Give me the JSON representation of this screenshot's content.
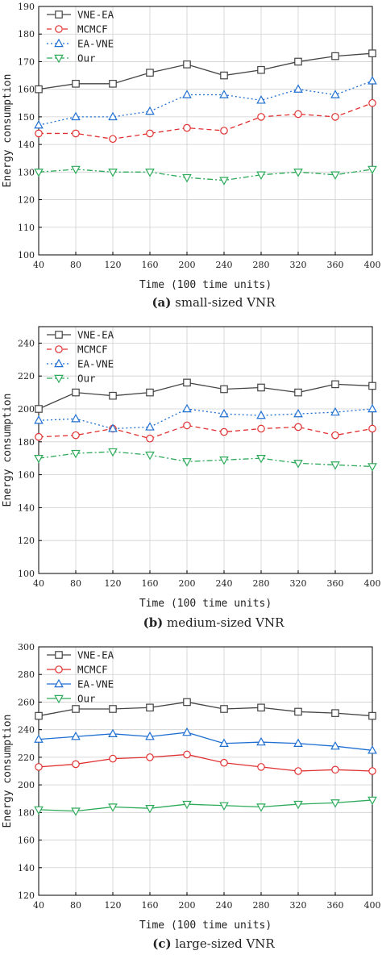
{
  "colors": {
    "VNE-EA": "#444444",
    "MCMCF": "#e03030",
    "EA-VNE": "#1f6fd1",
    "Our": "#2daa5a",
    "grid": "#cfcfcf",
    "axis": "#000000"
  },
  "chart_data": [
    {
      "type": "line",
      "caption_letter": "(a)",
      "caption_text": " small-sized VNR",
      "xlabel": "Time (100 time units)",
      "ylabel": "Energy consumption",
      "x": [
        40,
        80,
        120,
        160,
        200,
        240,
        280,
        320,
        360,
        400
      ],
      "xlim": [
        40,
        400
      ],
      "ylim": [
        100,
        190
      ],
      "yticks": [
        100,
        110,
        120,
        130,
        140,
        150,
        160,
        170,
        180,
        190
      ],
      "grid": true,
      "legend": "top-left",
      "series": [
        {
          "name": "VNE-EA",
          "marker": "square",
          "dash": "solid",
          "values": [
            160,
            162,
            162,
            166,
            169,
            165,
            167,
            170,
            172,
            173
          ]
        },
        {
          "name": "MCMCF",
          "marker": "circle",
          "dash": "dashed",
          "values": [
            144,
            144,
            142,
            144,
            146,
            145,
            150,
            151,
            150,
            155
          ]
        },
        {
          "name": "EA-VNE",
          "marker": "triangle-up",
          "dash": "dotted",
          "values": [
            147,
            150,
            150,
            152,
            158,
            158,
            156,
            160,
            158,
            163
          ]
        },
        {
          "name": "Our",
          "marker": "triangle-down",
          "dash": "dashdot",
          "values": [
            130,
            131,
            130,
            130,
            128,
            127,
            129,
            130,
            129,
            131
          ]
        }
      ]
    },
    {
      "type": "line",
      "caption_letter": "(b)",
      "caption_text": " medium-sized VNR",
      "xlabel": "Time (100 time units)",
      "ylabel": "Energy consumption",
      "x": [
        40,
        80,
        120,
        160,
        200,
        240,
        280,
        320,
        360,
        400
      ],
      "xlim": [
        40,
        400
      ],
      "ylim": [
        100,
        250
      ],
      "yticks": [
        100,
        120,
        140,
        160,
        180,
        200,
        220,
        240
      ],
      "grid": true,
      "legend": "top-left",
      "series": [
        {
          "name": "VNE-EA",
          "marker": "square",
          "dash": "solid",
          "values": [
            200,
            210,
            208,
            210,
            216,
            212,
            213,
            210,
            215,
            214
          ]
        },
        {
          "name": "MCMCF",
          "marker": "circle",
          "dash": "dashed",
          "values": [
            183,
            184,
            188,
            182,
            190,
            186,
            188,
            189,
            184,
            188
          ]
        },
        {
          "name": "EA-VNE",
          "marker": "triangle-up",
          "dash": "dotted",
          "values": [
            193,
            194,
            188,
            189,
            200,
            197,
            196,
            197,
            198,
            200
          ]
        },
        {
          "name": "Our",
          "marker": "triangle-down",
          "dash": "dashdot",
          "values": [
            170,
            173,
            174,
            172,
            168,
            169,
            170,
            167,
            166,
            165
          ]
        }
      ]
    },
    {
      "type": "line",
      "caption_letter": "(c)",
      "caption_text": " large-sized VNR",
      "xlabel": "Time (100 time units)",
      "ylabel": "Energy consumption",
      "x": [
        40,
        80,
        120,
        160,
        200,
        240,
        280,
        320,
        360,
        400
      ],
      "xlim": [
        40,
        400
      ],
      "ylim": [
        120,
        300
      ],
      "yticks": [
        120,
        140,
        160,
        180,
        200,
        220,
        240,
        260,
        280,
        300
      ],
      "grid": true,
      "legend": "top-left",
      "series": [
        {
          "name": "VNE-EA",
          "marker": "square",
          "dash": "solid",
          "values": [
            250,
            255,
            255,
            256,
            260,
            255,
            256,
            253,
            252,
            250
          ]
        },
        {
          "name": "MCMCF",
          "marker": "circle",
          "dash": "solid",
          "values": [
            213,
            215,
            219,
            220,
            222,
            216,
            213,
            210,
            211,
            210
          ]
        },
        {
          "name": "EA-VNE",
          "marker": "triangle-up",
          "dash": "solid",
          "values": [
            233,
            235,
            237,
            235,
            238,
            230,
            231,
            230,
            228,
            225
          ]
        },
        {
          "name": "Our",
          "marker": "triangle-down",
          "dash": "solid",
          "values": [
            182,
            181,
            184,
            183,
            186,
            185,
            184,
            186,
            187,
            189
          ]
        }
      ]
    }
  ]
}
